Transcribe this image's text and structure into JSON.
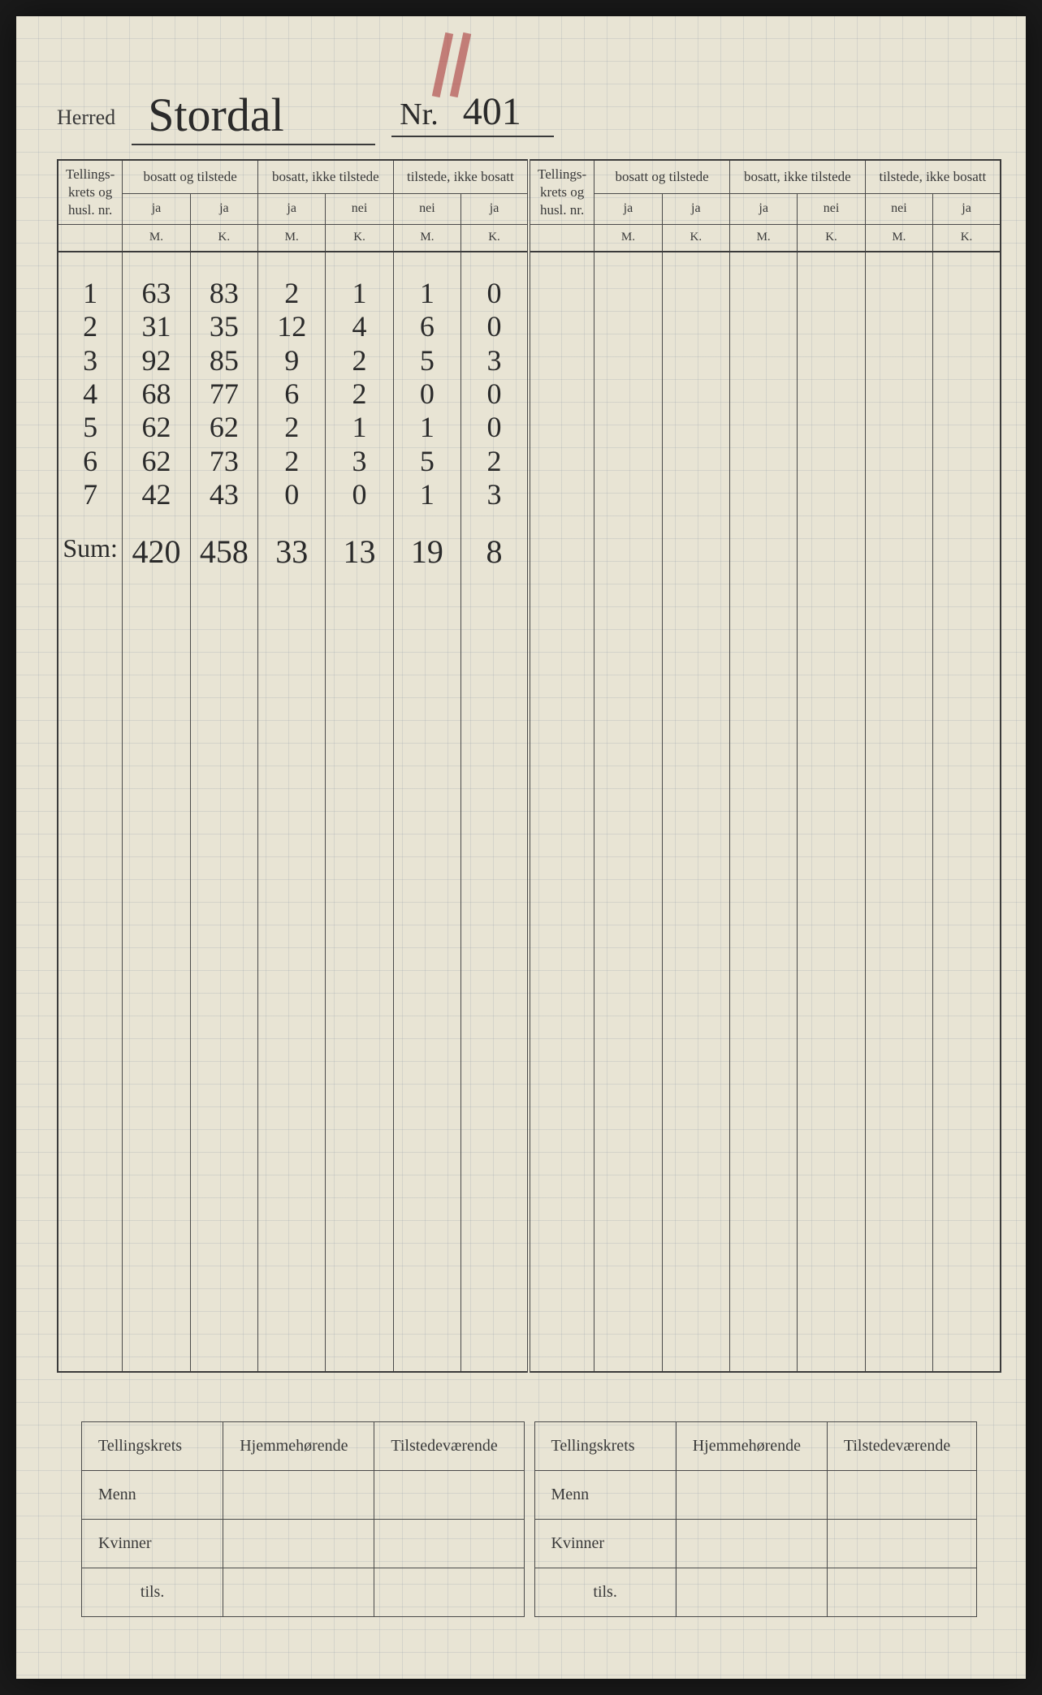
{
  "header": {
    "herred_label": "Herred",
    "herred_value": "Stordal",
    "nr_label": "Nr.",
    "nr_value": "401"
  },
  "columns": {
    "krets": "Tellings-\nkrets og\nhusl. nr.",
    "group1": "bosatt og tilstede",
    "group2": "bosatt, ikke tilstede",
    "group3": "tilstede, ikke bosatt",
    "g1a": "ja",
    "g1b": "ja",
    "g2a": "ja",
    "g2b": "nei",
    "g3a": "nei",
    "g3b": "ja",
    "m": "M.",
    "k": "K."
  },
  "rows": [
    {
      "n": "1",
      "m1": "63",
      "k1": "83",
      "m2": "2",
      "k2": "1",
      "m3": "1",
      "k3": "0"
    },
    {
      "n": "2",
      "m1": "31",
      "k1": "35",
      "m2": "12",
      "k2": "4",
      "m3": "6",
      "k3": "0"
    },
    {
      "n": "3",
      "m1": "92",
      "k1": "85",
      "m2": "9",
      "k2": "2",
      "m3": "5",
      "k3": "3"
    },
    {
      "n": "4",
      "m1": "68",
      "k1": "77",
      "m2": "6",
      "k2": "2",
      "m3": "0",
      "k3": "0"
    },
    {
      "n": "5",
      "m1": "62",
      "k1": "62",
      "m2": "2",
      "k2": "1",
      "m3": "1",
      "k3": "0"
    },
    {
      "n": "6",
      "m1": "62",
      "k1": "73",
      "m2": "2",
      "k2": "3",
      "m3": "5",
      "k3": "2"
    },
    {
      "n": "7",
      "m1": "42",
      "k1": "43",
      "m2": "0",
      "k2": "0",
      "m3": "1",
      "k3": "3"
    }
  ],
  "sum": {
    "label": "Sum:",
    "m1": "420",
    "k1": "458",
    "m2": "33",
    "k2": "13",
    "m3": "19",
    "k3": "8"
  },
  "summary": {
    "tellingskrets": "Tellingskrets",
    "hjemme": "Hjemmehørende",
    "tilstede": "Tilstedeværende",
    "menn": "Menn",
    "kvinner": "Kvinner",
    "tils": "tils."
  },
  "styling": {
    "page_bg": "#e8e4d4",
    "grid_color": "rgba(150,160,170,0.25)",
    "ink_color": "#2a2a2a",
    "print_color": "#3a3a3a",
    "border_color": "#4a4a4a",
    "red_mark_color": "#a83838",
    "handwritten_fontsize": 36,
    "header_fontsize": 26
  }
}
